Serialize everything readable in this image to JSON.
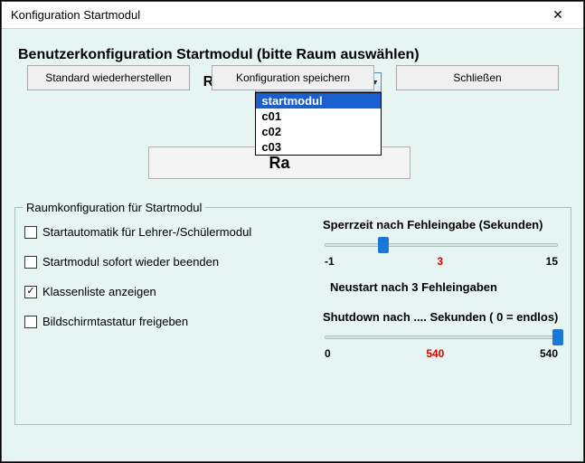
{
  "window": {
    "title": "Konfiguration Startmodul",
    "close_glyph": "✕"
  },
  "heading": "Benutzerkonfiguration Startmodul (bitte Raum auswählen)",
  "room": {
    "label": "Raum:",
    "selected": "startmodul",
    "options": [
      "startmodul",
      "c01",
      "c02",
      "c03"
    ],
    "select_button_partial": "Ra"
  },
  "group": {
    "legend": "Raumkonfiguration für Startmodul",
    "checks": [
      {
        "label": "Startautomatik für Lehrer-/Schülermodul",
        "checked": false
      },
      {
        "label": "Startmodul sofort wieder beenden",
        "checked": false
      },
      {
        "label": "Klassenliste anzeigen",
        "checked": true
      },
      {
        "label": "Bildschirmtastatur freigeben",
        "checked": false
      }
    ],
    "lock": {
      "label": "Sperrzeit nach Fehleingabe (Sekunden)",
      "min": -1,
      "mid": 3,
      "max": 15,
      "value": 3
    },
    "restart_line": "Neustart nach 3 Fehleingaben",
    "shutdown": {
      "label": "Shutdown nach .... Sekunden ( 0 = endlos)",
      "min": 0,
      "mid": 540,
      "max": 540,
      "value": 540
    }
  },
  "buttons": {
    "restore": "Standard wiederherstellen",
    "save": "Konfiguration speichern",
    "close": "Schließen"
  },
  "colors": {
    "window_bg": "#e6f4f2",
    "accent": "#1a5fd0",
    "slider_thumb": "#1a79d6",
    "mid_tick": "#d00000"
  }
}
